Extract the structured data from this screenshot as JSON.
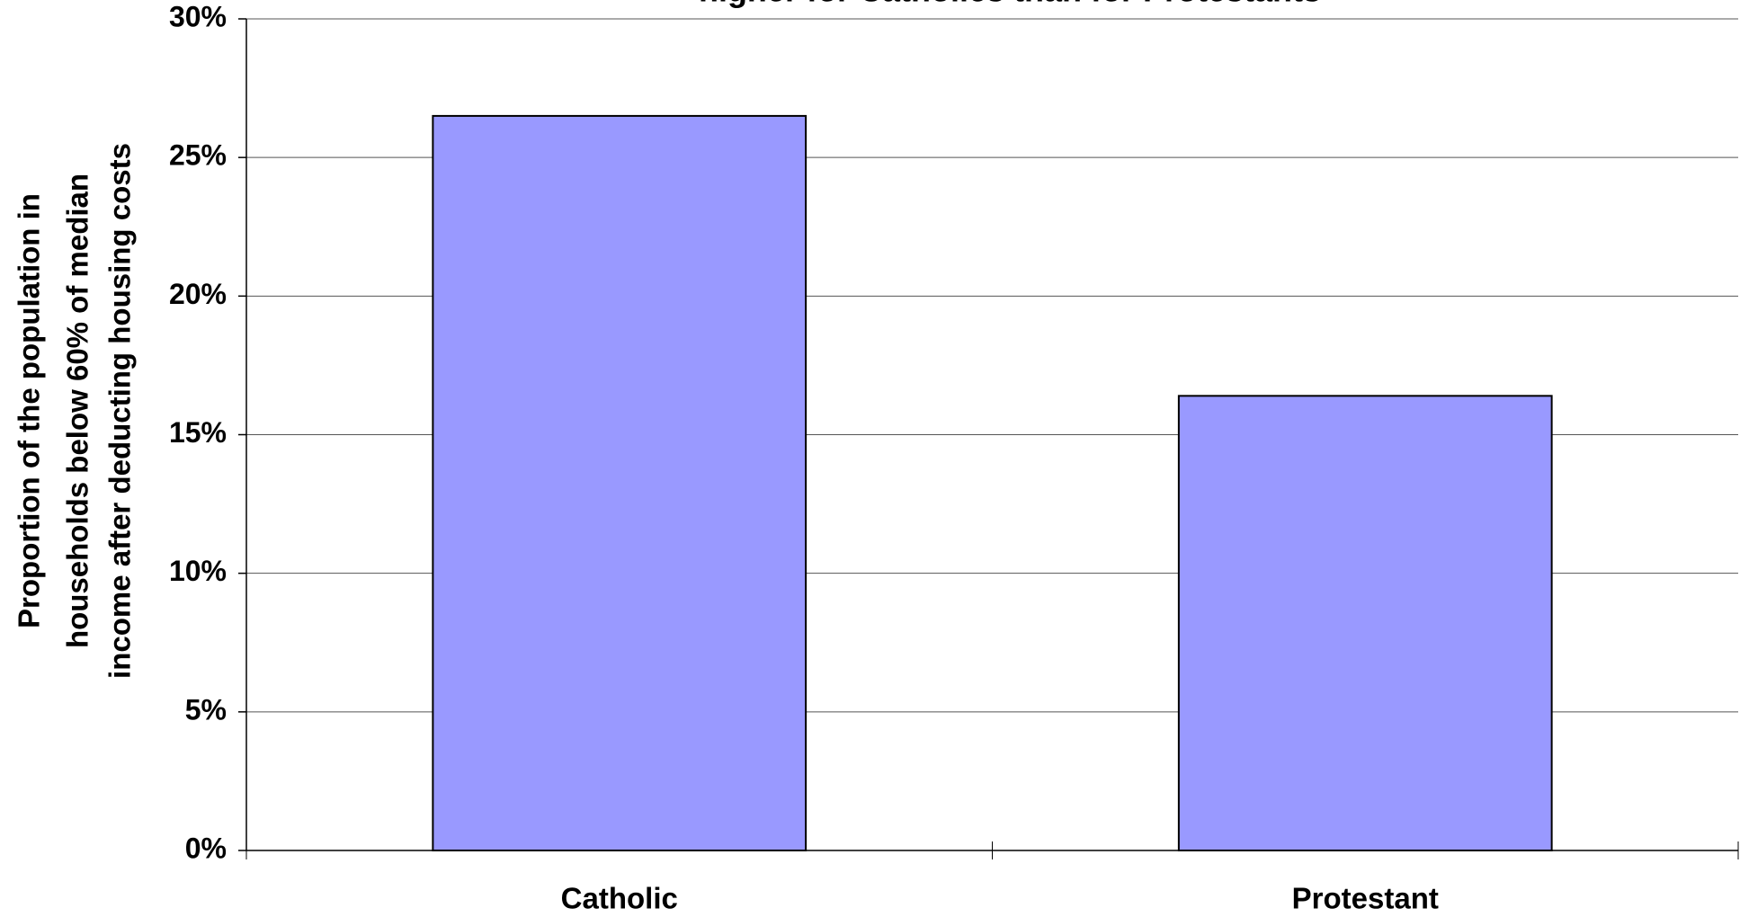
{
  "chart_data": {
    "type": "bar",
    "title": "higher for Catholics than for Protestants",
    "ylabel": [
      "Proportion of the population in",
      "households below 60% of median",
      "income after deducting housing costs"
    ],
    "categories": [
      "Catholic",
      "Protestant"
    ],
    "values": [
      26.5,
      16.4
    ],
    "color": "#9999ff",
    "ylim": [
      0,
      30
    ],
    "yticks": [
      {
        "value": 0,
        "label": "0%"
      },
      {
        "value": 5,
        "label": "5%"
      },
      {
        "value": 10,
        "label": "10%"
      },
      {
        "value": 15,
        "label": "15%"
      },
      {
        "value": 20,
        "label": "20%"
      },
      {
        "value": 25,
        "label": "25%"
      },
      {
        "value": 30,
        "label": "30%"
      }
    ],
    "grid": true
  }
}
